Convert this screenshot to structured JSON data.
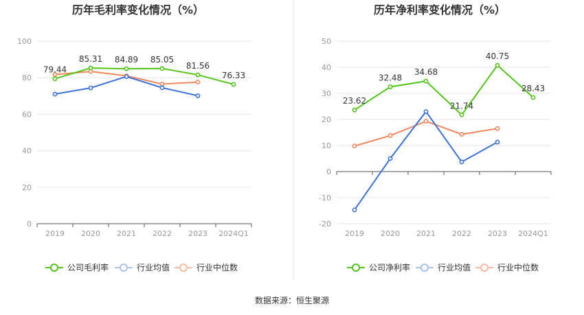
{
  "footer": {
    "source": "数据来源：恒生聚源"
  },
  "legend_labels": [
    "行业均值",
    "行业中位数"
  ],
  "colors": {
    "company": "#52c41a",
    "industry_avg": "#3a72d9",
    "industry_median": "#f2865c",
    "grid": "#e6e6f0",
    "axis": "#555555",
    "divider": "#e8e8e8"
  },
  "chart_data": [
    {
      "type": "line",
      "title": "历年毛利率变化情况（%）",
      "categories": [
        "2019",
        "2020",
        "2021",
        "2022",
        "2023",
        "2024Q1"
      ],
      "ylim": [
        0,
        100
      ],
      "yticks": [
        0,
        20,
        40,
        60,
        80,
        100
      ],
      "grid": true,
      "legend_position": "bottom",
      "series": [
        {
          "name": "公司毛利率",
          "color": "#52c41a",
          "labels": true,
          "values": [
            79.44,
            85.31,
            84.89,
            85.05,
            81.56,
            76.33
          ]
        },
        {
          "name": "行业均值",
          "color": "#3a72d9",
          "labels": false,
          "values": [
            71.0,
            74.4,
            80.6,
            74.5,
            70.1,
            null
          ]
        },
        {
          "name": "行业中位数",
          "color": "#f2865c",
          "labels": false,
          "values": [
            81.7,
            83.4,
            81.0,
            76.5,
            77.6,
            null
          ]
        }
      ]
    },
    {
      "type": "line",
      "title": "历年净利率变化情况（%）",
      "categories": [
        "2019",
        "2020",
        "2021",
        "2022",
        "2023",
        "2024Q1"
      ],
      "ylim": [
        -20,
        50
      ],
      "yticks": [
        -20,
        -10,
        0,
        10,
        20,
        30,
        40,
        50
      ],
      "grid": true,
      "legend_position": "bottom",
      "series": [
        {
          "name": "公司净利率",
          "color": "#52c41a",
          "labels": true,
          "values": [
            23.62,
            32.48,
            34.68,
            21.74,
            40.75,
            28.43
          ]
        },
        {
          "name": "行业均值",
          "color": "#3a72d9",
          "labels": false,
          "values": [
            -14.7,
            5.0,
            23.0,
            3.7,
            11.3,
            null
          ]
        },
        {
          "name": "行业中位数",
          "color": "#f2865c",
          "labels": false,
          "values": [
            9.8,
            13.8,
            19.3,
            14.3,
            16.5,
            null
          ]
        }
      ]
    }
  ]
}
